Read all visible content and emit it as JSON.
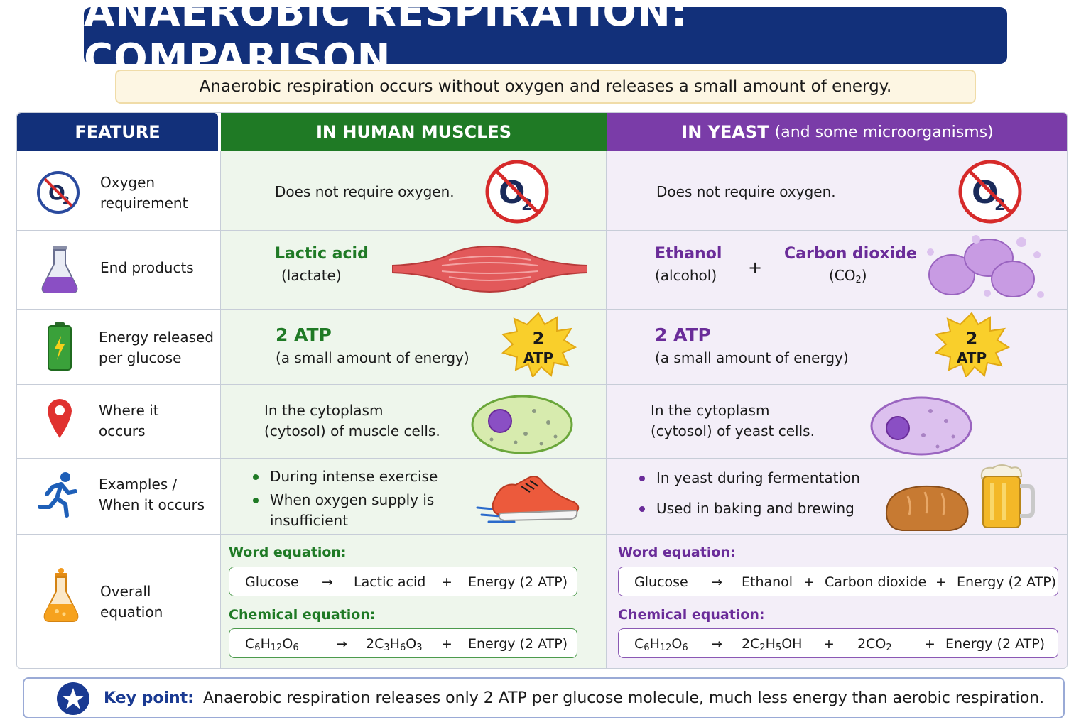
{
  "title": "ANAEROBIC RESPIRATION: COMPARISON",
  "subtitle": "Anaerobic respiration occurs without oxygen and releases a small amount of energy.",
  "headers": {
    "feature": "FEATURE",
    "human": "IN HUMAN MUSCLES",
    "yeast_main": "IN YEAST",
    "yeast_sub": "(and some microorganisms)"
  },
  "rows": {
    "oxygen": {
      "feature_line1": "Oxygen",
      "feature_line2": "requirement",
      "human": "Does not require oxygen.",
      "yeast": "Does not require oxygen.",
      "icon_text": "O",
      "icon_sub": "2"
    },
    "products": {
      "feature": "End products",
      "human_name": "Lactic acid",
      "human_alt": "(lactate)",
      "yeast_name1": "Ethanol",
      "yeast_alt1": "(alcohol)",
      "plus": "+",
      "yeast_name2": "Carbon dioxide",
      "yeast_alt2_pre": "(CO",
      "yeast_alt2_sub": "2",
      "yeast_alt2_post": ")"
    },
    "energy": {
      "feature_line1": "Energy released",
      "feature_line2": "per glucose",
      "value": "2 ATP",
      "note": "(a small amount of energy)",
      "badge_num": "2",
      "badge_unit": "ATP"
    },
    "location": {
      "feature_line1": "Where it",
      "feature_line2": "occurs",
      "human_line1": "In the cytoplasm",
      "human_line2": "(cytosol) of muscle cells.",
      "yeast_line1": "In the cytoplasm",
      "yeast_line2": "(cytosol) of yeast cells."
    },
    "examples": {
      "feature_line1": "Examples /",
      "feature_line2": "When it occurs",
      "human_items": [
        "During intense exercise",
        "When oxygen supply is",
        "insufficient"
      ],
      "yeast_items": [
        "In yeast during fermentation",
        "Used in baking and brewing"
      ]
    },
    "equation": {
      "feature_line1": "Overall",
      "feature_line2": "equation",
      "word_label": "Word equation:",
      "chem_label": "Chemical equation:",
      "arrow": "→",
      "plus": "+",
      "glucose": "Glucose",
      "lactic": "Lactic acid",
      "ethanol": "Ethanol",
      "co2_word": "Carbon dioxide",
      "energy": "Energy (2 ATP)"
    }
  },
  "keypoint": {
    "label": "Key point:",
    "text": "Anaerobic respiration releases only 2 ATP per glucose molecule, much less energy than aerobic respiration."
  },
  "colors": {
    "navy": "#12307a",
    "green": "#1f7a25",
    "purple": "#7a3ca8",
    "red": "#d62a2a"
  },
  "icons": [
    "no-oxygen-icon",
    "flask-icon",
    "battery-icon",
    "location-pin-icon",
    "runner-icon",
    "orange-flask-icon",
    "muscle-icon",
    "bubbles-icon",
    "atp-star-icon",
    "cell-icon",
    "shoe-icon",
    "bread-icon",
    "beer-icon",
    "star-badge-icon"
  ]
}
